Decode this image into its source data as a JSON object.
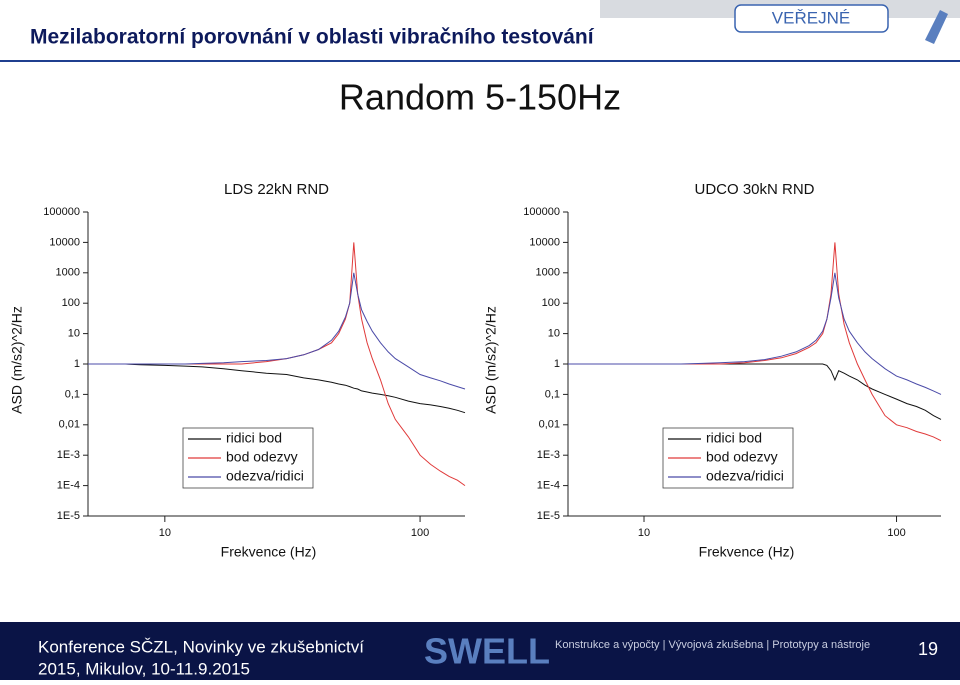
{
  "header": {
    "title": "Mezilaboratorní porovnání v oblasti vibračního testování",
    "badge": "VEŘEJNÉ",
    "slide_title": "Random 5-150Hz"
  },
  "footer": {
    "line1": "Konference SČZL, Novinky ve zkušebnictví",
    "line2": "2015, Mikulov, 10-11.9.2015",
    "logo": "SWELL",
    "tagline": "Konstrukce a výpočty | Vývojová zkušebna | Prototypy a nástroje",
    "page": "19"
  },
  "chart_data": [
    {
      "type": "line",
      "title": "LDS 22kN RND",
      "x_label": "Frekvence (Hz)",
      "y_label": "ASD (m/s2)^2/Hz",
      "xlog": true,
      "ylog": true,
      "legend": "lower center",
      "xlim": [
        5,
        150
      ],
      "xticks": [
        10,
        100
      ],
      "ylim": [
        1e-05,
        100000
      ],
      "yticks": [
        {
          "value": 1e-05,
          "label": "1E-5"
        },
        {
          "value": 0.0001,
          "label": "1E-4"
        },
        {
          "value": 0.001,
          "label": "1E-3"
        },
        {
          "value": 0.01,
          "label": "0,01"
        },
        {
          "value": 0.1,
          "label": "0,1"
        },
        1,
        10,
        100,
        1000,
        10000,
        100000
      ],
      "x": [
        5,
        6,
        7,
        8,
        10,
        12,
        14,
        17,
        20,
        25,
        30,
        35,
        40,
        45,
        48,
        51,
        53,
        55,
        57,
        59,
        62,
        65,
        70,
        75,
        80,
        90,
        100,
        110,
        120,
        130,
        140,
        150
      ],
      "series": [
        {
          "name": "ridici bod",
          "color": "#111111",
          "values": [
            1,
            1,
            1,
            0.95,
            0.9,
            0.85,
            0.8,
            0.7,
            0.6,
            0.5,
            0.45,
            0.35,
            0.3,
            0.25,
            0.22,
            0.2,
            0.18,
            0.16,
            0.15,
            0.13,
            0.12,
            0.11,
            0.1,
            0.09,
            0.08,
            0.06,
            0.05,
            0.045,
            0.04,
            0.035,
            0.03,
            0.025
          ]
        },
        {
          "name": "bod odezvy",
          "color": "#e03a3a",
          "values": [
            1,
            1,
            1,
            1,
            1,
            1,
            1,
            1,
            1,
            1.2,
            1.5,
            2,
            3,
            5,
            10,
            30,
            100,
            10000,
            200,
            30,
            5,
            1.5,
            0.3,
            0.05,
            0.015,
            0.004,
            0.001,
            0.0005,
            0.0003,
            0.0002,
            0.00015,
            0.0001
          ]
        },
        {
          "name": "odezva/ridici",
          "color": "#4b4ba8",
          "values": [
            1,
            1,
            1,
            1,
            1,
            1,
            1.05,
            1.1,
            1.2,
            1.3,
            1.5,
            2,
            3,
            6,
            12,
            35,
            100,
            1000,
            200,
            60,
            25,
            12,
            5,
            2.5,
            1.5,
            0.8,
            0.45,
            0.35,
            0.28,
            0.22,
            0.18,
            0.15
          ]
        }
      ]
    },
    {
      "type": "line",
      "title": "UDCO 30kN RND",
      "x_label": "Frekvence (Hz)",
      "y_label": "ASD (m/s2)^2/Hz",
      "xlog": true,
      "ylog": true,
      "legend": "lower center",
      "xlim": [
        5,
        150
      ],
      "xticks": [
        10,
        100
      ],
      "ylim": [
        1e-05,
        100000
      ],
      "yticks": [
        {
          "value": 1e-05,
          "label": "1E-5"
        },
        {
          "value": 0.0001,
          "label": "1E-4"
        },
        {
          "value": 0.001,
          "label": "1E-3"
        },
        {
          "value": 0.01,
          "label": "0,01"
        },
        {
          "value": 0.1,
          "label": "0,1"
        },
        1,
        10,
        100,
        1000,
        10000,
        100000
      ],
      "x": [
        5,
        6,
        7,
        8,
        10,
        12,
        14,
        17,
        20,
        25,
        30,
        35,
        40,
        45,
        48,
        51,
        53,
        55,
        57,
        59,
        62,
        65,
        70,
        75,
        80,
        90,
        100,
        110,
        120,
        130,
        140,
        150
      ],
      "series": [
        {
          "name": "ridici bod",
          "color": "#111111",
          "values": [
            1,
            1,
            1,
            1,
            1,
            1,
            1,
            1,
            1,
            1,
            1,
            1,
            1,
            1,
            1,
            1,
            0.9,
            0.6,
            0.3,
            0.6,
            0.5,
            0.4,
            0.3,
            0.2,
            0.15,
            0.1,
            0.07,
            0.05,
            0.04,
            0.03,
            0.02,
            0.015
          ]
        },
        {
          "name": "bod odezvy",
          "color": "#e03a3a",
          "values": [
            1,
            1,
            1,
            1,
            1,
            1,
            1,
            1,
            1,
            1.1,
            1.3,
            1.6,
            2.2,
            3.5,
            5,
            10,
            30,
            200,
            10000,
            200,
            20,
            5,
            1,
            0.3,
            0.1,
            0.02,
            0.01,
            0.008,
            0.006,
            0.005,
            0.004,
            0.003
          ]
        },
        {
          "name": "odezva/ridici",
          "color": "#4b4ba8",
          "values": [
            1,
            1,
            1,
            1,
            1,
            1,
            1,
            1.05,
            1.1,
            1.2,
            1.4,
            1.8,
            2.5,
            4,
            6,
            12,
            30,
            150,
            1000,
            150,
            30,
            12,
            5,
            2.5,
            1.5,
            0.7,
            0.4,
            0.3,
            0.22,
            0.17,
            0.13,
            0.1
          ]
        }
      ]
    }
  ]
}
